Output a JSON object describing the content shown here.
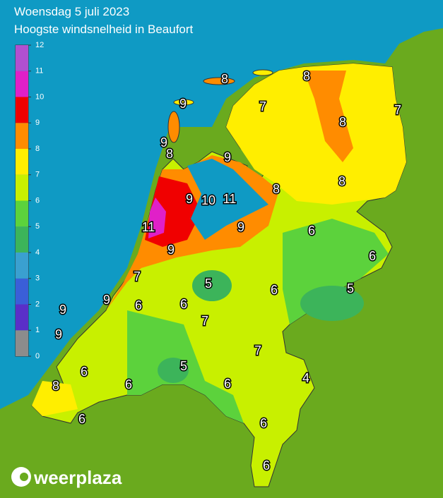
{
  "header": {
    "title": "Woensdag 5 juli 2023",
    "subtitle": "Hoogste windsnelheid in Beaufort"
  },
  "legend": {
    "ticks": [
      0,
      1,
      2,
      3,
      4,
      5,
      6,
      7,
      8,
      9,
      10,
      11,
      12
    ],
    "colors": [
      "#8c8c8c",
      "#5a2fc8",
      "#3a5fd8",
      "#3aa0d0",
      "#3cb45a",
      "#5cd23c",
      "#c8f000",
      "#ffee00",
      "#ff8c00",
      "#f00000",
      "#e020c8",
      "#b050d0"
    ]
  },
  "map_labels": [
    8,
    8,
    7,
    7,
    9,
    8,
    9,
    8,
    9,
    8,
    8,
    9,
    10,
    11,
    11,
    9,
    6,
    9,
    6,
    7,
    5,
    5,
    9,
    9,
    6,
    6,
    6,
    7,
    9,
    7,
    5,
    6,
    6,
    4,
    6,
    8,
    6,
    6,
    6
  ],
  "logo": "weerplaza"
}
